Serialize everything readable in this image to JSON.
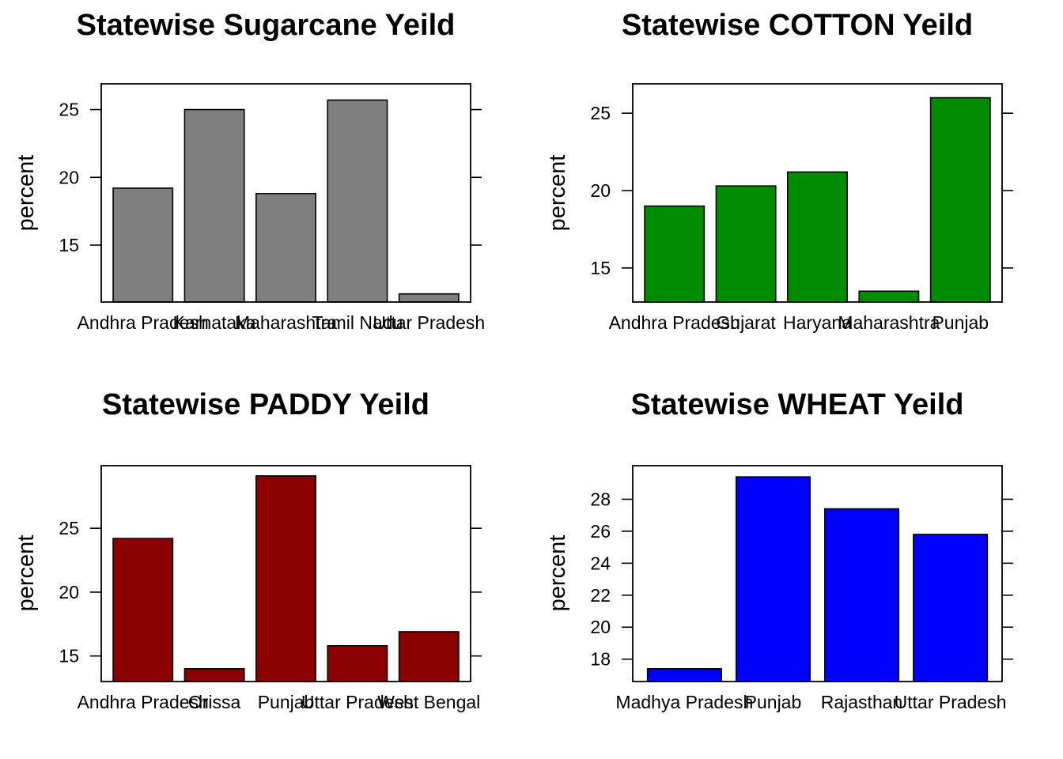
{
  "chart_data": [
    {
      "type": "bar",
      "title": "Statewise Sugarcane Yeild",
      "ylabel": "percent",
      "xlabel": "",
      "categories": [
        "Andhra Pradesh",
        "Karnataka",
        "Maharashtra",
        "Tamil Nadu",
        "Uttar Pradesh"
      ],
      "values": [
        19.2,
        25.0,
        18.8,
        25.7,
        11.4
      ],
      "yticks": [
        15,
        20,
        25
      ],
      "ylim": [
        10.8,
        26.9
      ],
      "color": "#7f7f7f"
    },
    {
      "type": "bar",
      "title": "Statewise COTTON Yeild",
      "ylabel": "percent",
      "xlabel": "",
      "categories": [
        "Andhra Pradesh",
        "Gujarat",
        "Haryana",
        "Maharashtra",
        "Punjab"
      ],
      "values": [
        19.0,
        20.3,
        21.2,
        13.5,
        26.0
      ],
      "yticks": [
        15,
        20,
        25
      ],
      "ylim": [
        12.8,
        26.9
      ],
      "color": "#008b00"
    },
    {
      "type": "bar",
      "title": "Statewise PADDY Yeild",
      "ylabel": "percent",
      "xlabel": "",
      "categories": [
        "Andhra Pradesh",
        "Orissa",
        "Punjab",
        "Uttar Pradesh",
        "West Bengal"
      ],
      "values": [
        24.2,
        14.0,
        29.1,
        15.8,
        16.9
      ],
      "yticks": [
        15,
        20,
        25
      ],
      "ylim": [
        13.0,
        29.9
      ],
      "color": "#8b0000"
    },
    {
      "type": "bar",
      "title": "Statewise WHEAT Yeild",
      "ylabel": "percent",
      "xlabel": "",
      "categories": [
        "Madhya Pradesh",
        "Punjab",
        "Rajasthan",
        "Uttar Pradesh"
      ],
      "values": [
        17.4,
        29.4,
        27.4,
        25.8
      ],
      "yticks": [
        18,
        20,
        22,
        24,
        26,
        28
      ],
      "ylim": [
        16.6,
        30.1
      ],
      "color": "#0000ff"
    }
  ]
}
